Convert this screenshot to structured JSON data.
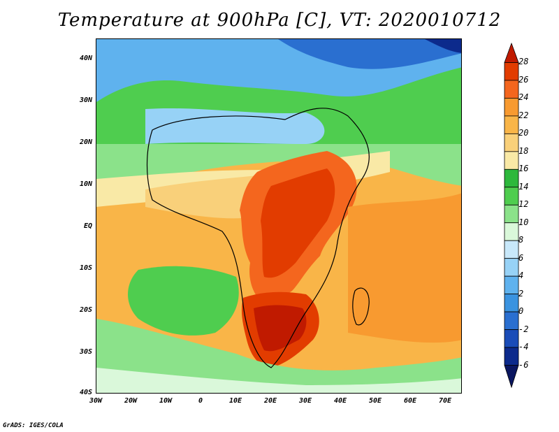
{
  "title": "Temperature at 900hPa [C], VT: 2020010712",
  "credit": "GrADS: IGES/COLA",
  "lat_labels": [
    "40N",
    "30N",
    "20N",
    "10N",
    "EQ",
    "10S",
    "20S",
    "30S",
    "40S"
  ],
  "lon_labels": [
    "30W",
    "20W",
    "10W",
    "0",
    "10E",
    "20E",
    "30E",
    "40E",
    "50E",
    "60E",
    "70E"
  ],
  "colorbar": {
    "labels": [
      "28",
      "26",
      "24",
      "22",
      "20",
      "18",
      "16",
      "14",
      "12",
      "10",
      "8",
      "6",
      "4",
      "2",
      "0",
      "-2",
      "-4",
      "-6"
    ],
    "colors": [
      "#c01a00",
      "#e23c00",
      "#f4661e",
      "#f89a30",
      "#f9b548",
      "#f9d07a",
      "#f9e9a6",
      "#2db83c",
      "#4fcd4f",
      "#8be28a",
      "#daf8da",
      "#c8e8fa",
      "#97d2f6",
      "#5fb2ee",
      "#3a93e0",
      "#2a6fd0",
      "#1a4cb8",
      "#0c2a8c",
      "#0a1660"
    ]
  },
  "map_regions": {
    "colors": {
      "ocean_warm": "#f9b548",
      "ocean_light": "#f9d07a",
      "ocean_pale": "#f9e9a6",
      "green_dark": "#2db83c",
      "green_mid": "#4fcd4f",
      "green_light": "#8be28a",
      "cyan_pale": "#daf8da",
      "blue_light": "#97d2f6",
      "blue_mid": "#5fb2ee",
      "blue_dark": "#3a93e0",
      "deep_blue": "#2a6fd0",
      "hot_dark": "#c01a00",
      "hot_red": "#e23c00",
      "hot_orange": "#f4661e",
      "orange": "#f89a30"
    }
  }
}
